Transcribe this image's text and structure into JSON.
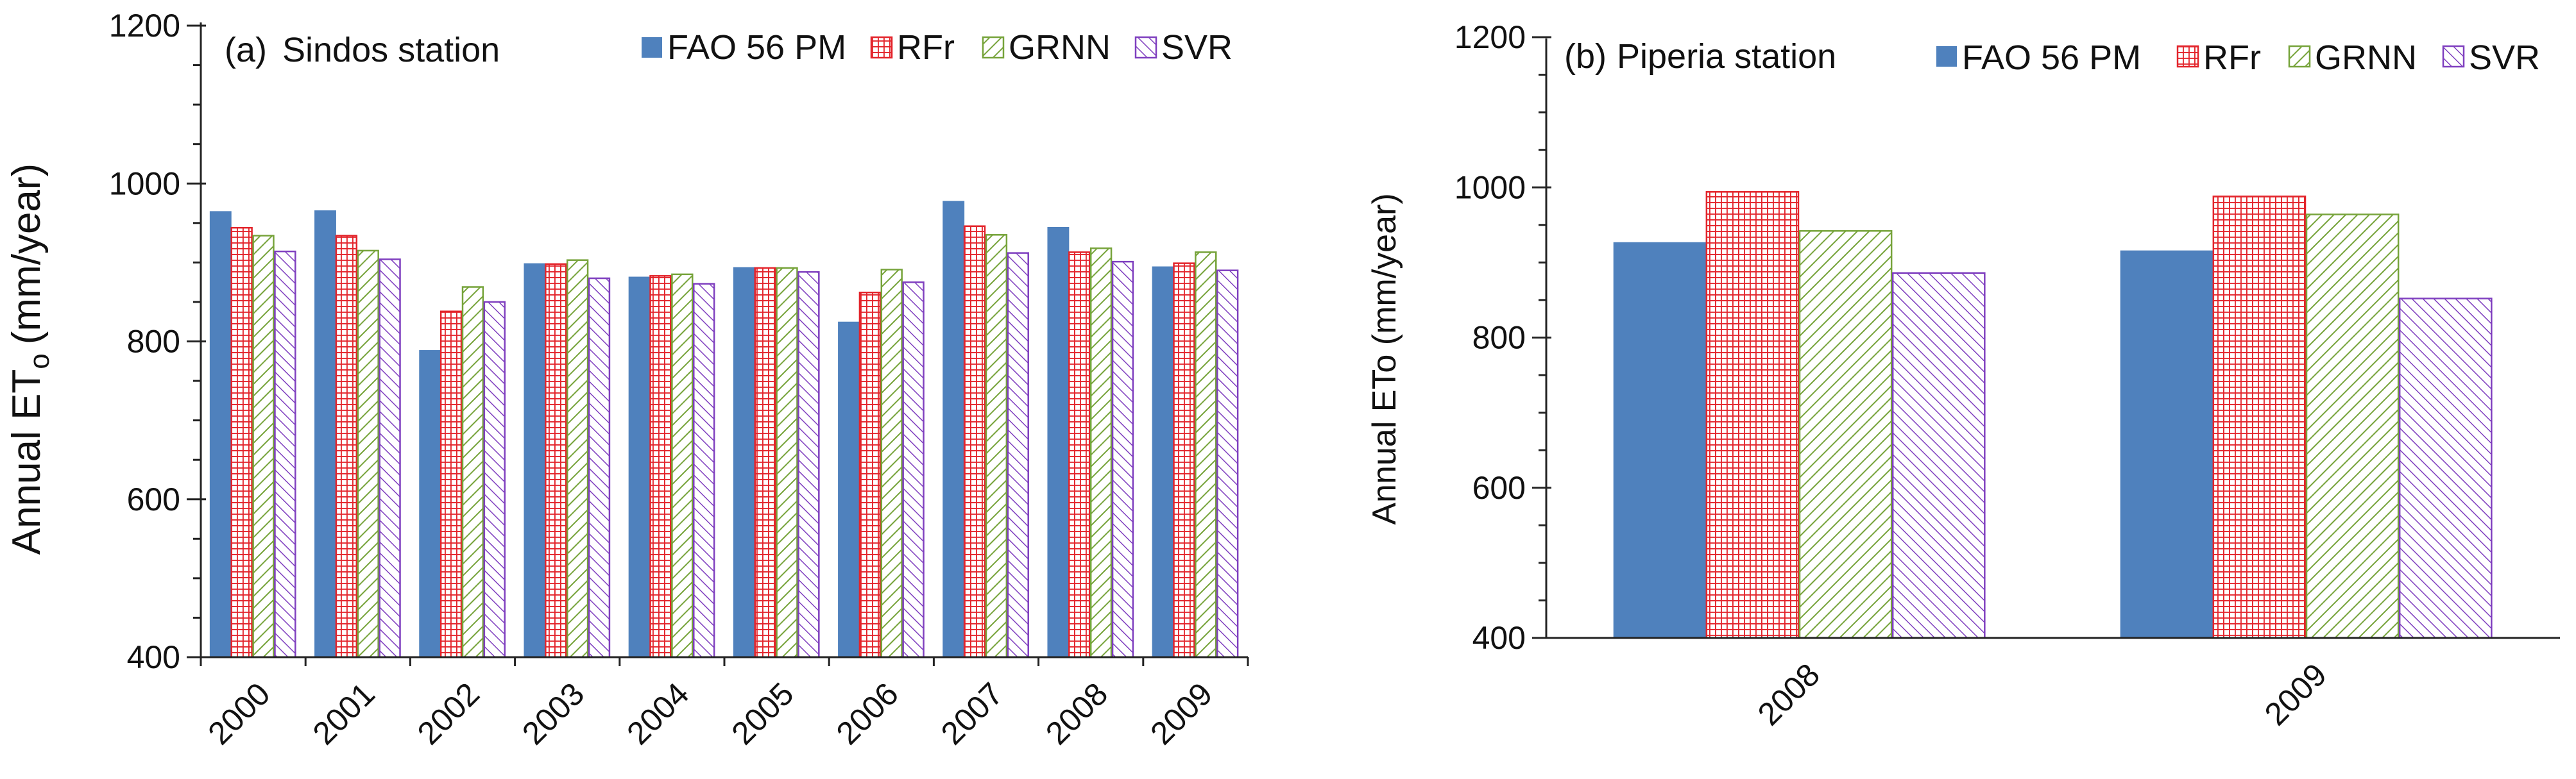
{
  "chart_data": [
    {
      "type": "bar",
      "panel_label": "(a)",
      "title": "Sindos station",
      "xlabel": "",
      "ylabel": "Annual ET",
      "ylabel_subscript": "o",
      "ylabel_units": "(mm/year)",
      "ylim": [
        400,
        1200
      ],
      "yticks": [
        400,
        600,
        800,
        1000,
        1200
      ],
      "categories": [
        "2000",
        "2001",
        "2002",
        "2003",
        "2004",
        "2005",
        "2006",
        "2007",
        "2008",
        "2009"
      ],
      "series": [
        {
          "name": "FAO 56 PM",
          "values": [
            965,
            966,
            789,
            899,
            882,
            894,
            825,
            978,
            945,
            895
          ]
        },
        {
          "name": "RFr",
          "values": [
            944,
            934,
            838,
            898,
            883,
            893,
            862,
            946,
            913,
            899
          ]
        },
        {
          "name": "GRNN",
          "values": [
            934,
            915,
            869,
            903,
            885,
            893,
            891,
            935,
            918,
            913
          ]
        },
        {
          "name": "SVR",
          "values": [
            914,
            904,
            850,
            880,
            873,
            888,
            875,
            912,
            901,
            890
          ]
        }
      ]
    },
    {
      "type": "bar",
      "panel_label": "(b)",
      "title": "Piperia station",
      "xlabel": "",
      "ylabel": "Annual ETo (mm/year)",
      "ylim": [
        400,
        1200
      ],
      "yticks": [
        400,
        600,
        800,
        1000,
        1200
      ],
      "categories": [
        "2008",
        "2009"
      ],
      "series": [
        {
          "name": "FAO 56 PM",
          "values": [
            927,
            916
          ]
        },
        {
          "name": "RFr",
          "values": [
            994,
            988
          ]
        },
        {
          "name": "GRNN",
          "values": [
            942,
            964
          ]
        },
        {
          "name": "SVR",
          "values": [
            886,
            852
          ]
        }
      ]
    }
  ],
  "style": {
    "fao_color": "#4f81bd",
    "rfr_color": "#e3242b",
    "grnn_color": "#76a33a",
    "svr_color": "#7f3fbf"
  }
}
